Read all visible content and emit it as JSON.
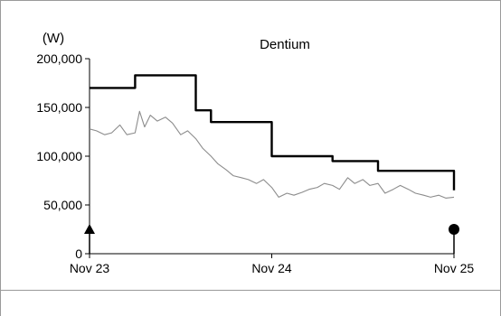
{
  "chart_data": {
    "type": "line",
    "title": "Dentium",
    "y_unit": "(W)",
    "ylim": [
      0,
      200000
    ],
    "y_ticks": [
      0,
      50000,
      100000,
      150000,
      200000
    ],
    "y_tick_labels": [
      "0",
      "50,000",
      "100,000",
      "150,000",
      "200,000"
    ],
    "x_range": [
      "2023-11",
      "2025-11"
    ],
    "x_ticks": [
      "2023-11",
      "2024-11",
      "2025-11"
    ],
    "x_tick_labels": [
      "Nov 23",
      "Nov 24",
      "Nov 25"
    ],
    "grid": false,
    "colors": {
      "target": "#000000",
      "price": "#8c8c8c",
      "markers": "#000000"
    },
    "series": [
      {
        "role": "target-price",
        "step": true,
        "points": [
          [
            "2023-11",
            170000
          ],
          [
            "2024-02",
            170000
          ],
          [
            "2024-02",
            183000
          ],
          [
            "2024-06",
            183000
          ],
          [
            "2024-06",
            147000
          ],
          [
            "2024-07",
            147000
          ],
          [
            "2024-07",
            135000
          ],
          [
            "2024-11",
            135000
          ],
          [
            "2024-11",
            100000
          ],
          [
            "2025-03",
            100000
          ],
          [
            "2025-03",
            95000
          ],
          [
            "2025-06",
            95000
          ],
          [
            "2025-06",
            85000
          ],
          [
            "2025-11",
            85000
          ],
          [
            "2025-11",
            65000
          ]
        ]
      },
      {
        "role": "share-price",
        "step": false,
        "points": [
          [
            "2023-11",
            128000
          ],
          [
            "2023-11-15",
            126000
          ],
          [
            "2023-12",
            122000
          ],
          [
            "2023-12-15",
            124000
          ],
          [
            "2024-01",
            132000
          ],
          [
            "2024-01-15",
            122000
          ],
          [
            "2024-02",
            124000
          ],
          [
            "2024-02-10",
            146000
          ],
          [
            "2024-02-20",
            130000
          ],
          [
            "2024-03",
            142000
          ],
          [
            "2024-03-15",
            136000
          ],
          [
            "2024-04",
            140000
          ],
          [
            "2024-04-15",
            134000
          ],
          [
            "2024-05",
            122000
          ],
          [
            "2024-05-15",
            126000
          ],
          [
            "2024-06",
            118000
          ],
          [
            "2024-06-15",
            108000
          ],
          [
            "2024-07",
            100000
          ],
          [
            "2024-07-15",
            92000
          ],
          [
            "2024-08",
            86000
          ],
          [
            "2024-08-15",
            80000
          ],
          [
            "2024-09",
            78000
          ],
          [
            "2024-09-15",
            76000
          ],
          [
            "2024-10",
            72000
          ],
          [
            "2024-10-15",
            76000
          ],
          [
            "2024-11",
            68000
          ],
          [
            "2024-11-15",
            58000
          ],
          [
            "2024-12",
            62000
          ],
          [
            "2024-12-15",
            60000
          ],
          [
            "2025-01",
            63000
          ],
          [
            "2025-01-15",
            66000
          ],
          [
            "2025-02",
            68000
          ],
          [
            "2025-02-15",
            72000
          ],
          [
            "2025-03",
            70000
          ],
          [
            "2025-03-15",
            66000
          ],
          [
            "2025-04",
            78000
          ],
          [
            "2025-04-15",
            72000
          ],
          [
            "2025-05",
            76000
          ],
          [
            "2025-05-15",
            70000
          ],
          [
            "2025-06",
            72000
          ],
          [
            "2025-06-15",
            62000
          ],
          [
            "2025-07",
            66000
          ],
          [
            "2025-07-15",
            70000
          ],
          [
            "2025-08",
            66000
          ],
          [
            "2025-08-15",
            62000
          ],
          [
            "2025-09",
            60000
          ],
          [
            "2025-09-15",
            58000
          ],
          [
            "2025-10",
            60000
          ],
          [
            "2025-10-15",
            57000
          ],
          [
            "2025-11",
            58000
          ]
        ]
      }
    ],
    "markers": [
      {
        "shape": "triangle",
        "x": "2023-11",
        "y": 0
      },
      {
        "shape": "circle",
        "x": "2025-11",
        "y": 0
      }
    ]
  }
}
